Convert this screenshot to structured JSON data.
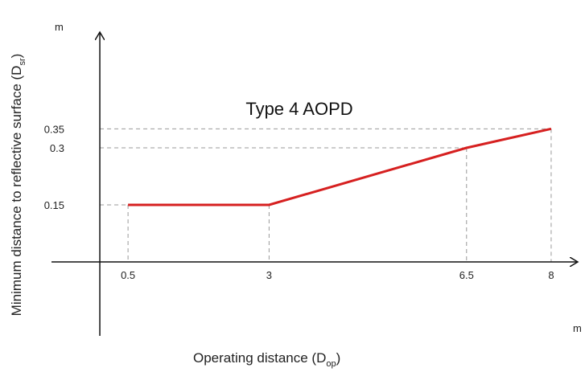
{
  "chart_data": {
    "type": "line",
    "title": "Type 4 AOPD",
    "xlabel": "Operating distance (D",
    "xlabel_sub": "op",
    "xlabel_close": ")",
    "ylabel": "Minimum distance to reflective surface (D",
    "ylabel_sub": "sr",
    "ylabel_close": ")",
    "x_unit": "m",
    "y_unit": "m",
    "x_ticks": [
      "0.5",
      "3",
      "6.5",
      "8"
    ],
    "y_ticks": [
      "0.15",
      "0.3",
      "0.35"
    ],
    "series": [
      {
        "x": [
          0.5,
          3,
          6.5,
          8
        ],
        "y": [
          0.15,
          0.15,
          0.3,
          0.35
        ],
        "color": "#d62020"
      }
    ],
    "xlim": [
      -0.5,
      8.5
    ],
    "ylim": [
      -0.15,
      0.6
    ],
    "grid": false,
    "guide_lines": "dashed"
  }
}
